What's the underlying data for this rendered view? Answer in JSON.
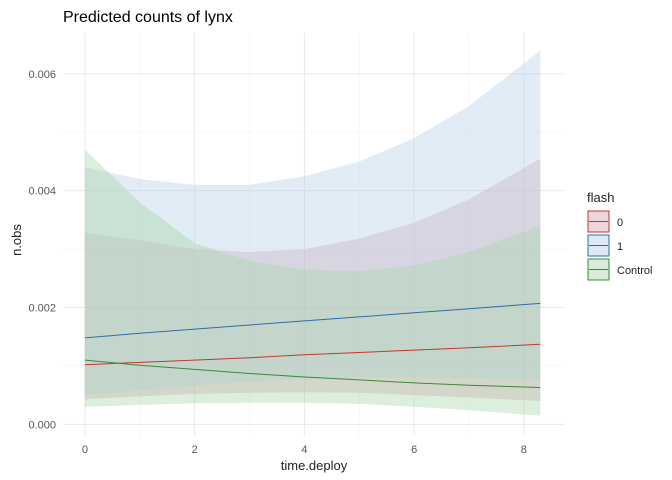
{
  "chart_data": {
    "type": "line",
    "title": "Predicted counts of lynx",
    "xlabel": "time.deploy",
    "ylabel": "n.obs",
    "xlim": [
      -0.4,
      8.75
    ],
    "ylim": [
      -0.0002,
      0.0067
    ],
    "xticks": [
      "0",
      "2",
      "4",
      "6",
      "8"
    ],
    "yticks": [
      "0.000",
      "0.002",
      "0.004",
      "0.006"
    ],
    "grid": true,
    "legend": {
      "title": "flash",
      "position": "right"
    },
    "x": [
      0,
      1,
      2,
      3,
      4,
      5,
      6,
      7,
      8.3
    ],
    "series": [
      {
        "name": "0",
        "color": "#c0392b",
        "fill": "#d9a0b0",
        "values": [
          0.00102,
          0.00106,
          0.0011,
          0.00114,
          0.00119,
          0.00123,
          0.00127,
          0.00131,
          0.00137
        ],
        "lower": [
          0.00043,
          0.00048,
          0.00052,
          0.00054,
          0.00055,
          0.00054,
          0.0005,
          0.00046,
          0.0004
        ],
        "upper": [
          0.00328,
          0.00315,
          0.003,
          0.00295,
          0.003,
          0.00318,
          0.00345,
          0.00385,
          0.00455
        ]
      },
      {
        "name": "1",
        "color": "#2e6da4",
        "fill": "#b5cfe8",
        "values": [
          0.00148,
          0.00156,
          0.00163,
          0.0017,
          0.00177,
          0.00184,
          0.00191,
          0.00198,
          0.00207
        ],
        "lower": [
          0.0005,
          0.00058,
          0.00066,
          0.00073,
          0.00078,
          0.0008,
          0.0008,
          0.00079,
          0.00075
        ],
        "upper": [
          0.0044,
          0.0042,
          0.0041,
          0.0041,
          0.00425,
          0.0045,
          0.0049,
          0.00545,
          0.0064
        ]
      },
      {
        "name": "Control",
        "color": "#3a8a3a",
        "fill": "#a8d5a8",
        "values": [
          0.0011,
          0.00101,
          0.00094,
          0.00087,
          0.00081,
          0.00076,
          0.00071,
          0.00067,
          0.00063
        ],
        "lower": [
          0.0003,
          0.00033,
          0.00036,
          0.00037,
          0.00037,
          0.00035,
          0.0003,
          0.00024,
          0.00015
        ],
        "upper": [
          0.0047,
          0.0038,
          0.0031,
          0.0028,
          0.00265,
          0.00262,
          0.00272,
          0.00295,
          0.0034
        ]
      }
    ]
  }
}
